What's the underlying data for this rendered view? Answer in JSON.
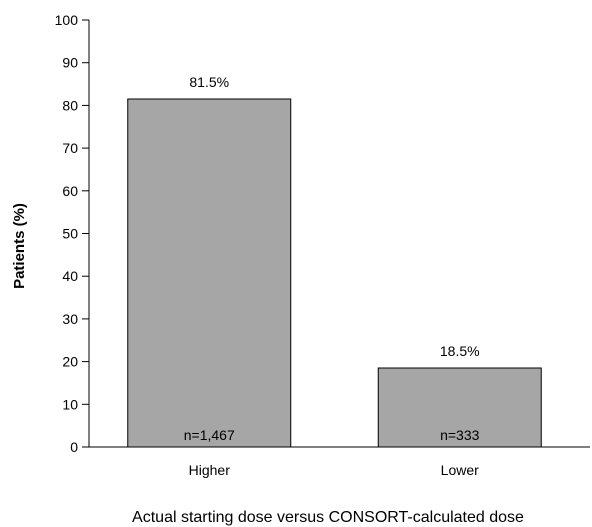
{
  "chart_data": {
    "type": "bar",
    "title": "",
    "ylabel": "Patients (%)",
    "xlabel": "Actual starting dose versus CONSORT-calculated dose",
    "ylim": [
      0,
      100
    ],
    "yticks": [
      0,
      10,
      20,
      30,
      40,
      50,
      60,
      70,
      80,
      90,
      100
    ],
    "categories": [
      "Higher",
      "Lower"
    ],
    "values": [
      81.5,
      18.5
    ],
    "data_labels": [
      "81.5%",
      "18.5%"
    ],
    "n_labels": [
      "n=1,467",
      "n=333"
    ],
    "grid": false,
    "legend": "none",
    "bar_color": "#a6a6a6",
    "bar_edge_color": "#000000"
  }
}
